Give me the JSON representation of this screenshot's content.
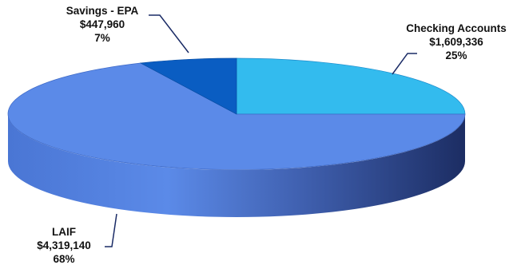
{
  "chart_data": {
    "type": "pie",
    "style": "3d-exploded-ellipse",
    "title": "",
    "slices": [
      {
        "label": "Checking Accounts",
        "value": 1609336,
        "value_text": "$1,609,336",
        "percent_text": "25%",
        "color": "#33bbee"
      },
      {
        "label": "LAIF",
        "value": 4319140,
        "value_text": "$4,319,140",
        "percent_text": "68%",
        "color": "#5b8ae8"
      },
      {
        "label": "Savings - EPA",
        "value": 447960,
        "value_text": "$447,960",
        "percent_text": "7%",
        "color": "#0a5dc2"
      }
    ],
    "legend": "none",
    "data_labels": "outside-with-leader-lines"
  }
}
